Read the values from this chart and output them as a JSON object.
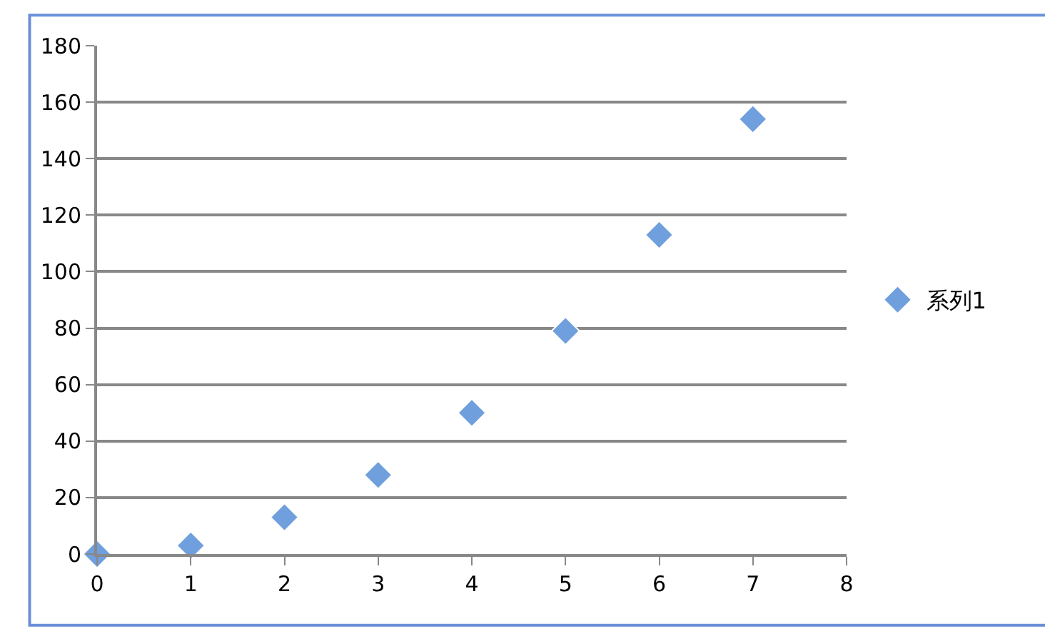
{
  "chart_data": {
    "type": "scatter",
    "x": [
      0,
      1,
      2,
      3,
      4,
      5,
      6,
      7
    ],
    "series": [
      {
        "name": "系列1",
        "color": "#6f9fdc",
        "values": [
          0,
          3,
          13,
          28,
          50,
          79,
          113,
          154
        ]
      }
    ],
    "xlim": [
      0,
      8
    ],
    "xticks": [
      0,
      1,
      2,
      3,
      4,
      5,
      6,
      7,
      8
    ],
    "ylim": [
      0,
      180
    ],
    "yticks": [
      0,
      20,
      40,
      60,
      80,
      100,
      120,
      140,
      160,
      180
    ],
    "grid": "y",
    "legend": "right",
    "marker": "diamond"
  }
}
